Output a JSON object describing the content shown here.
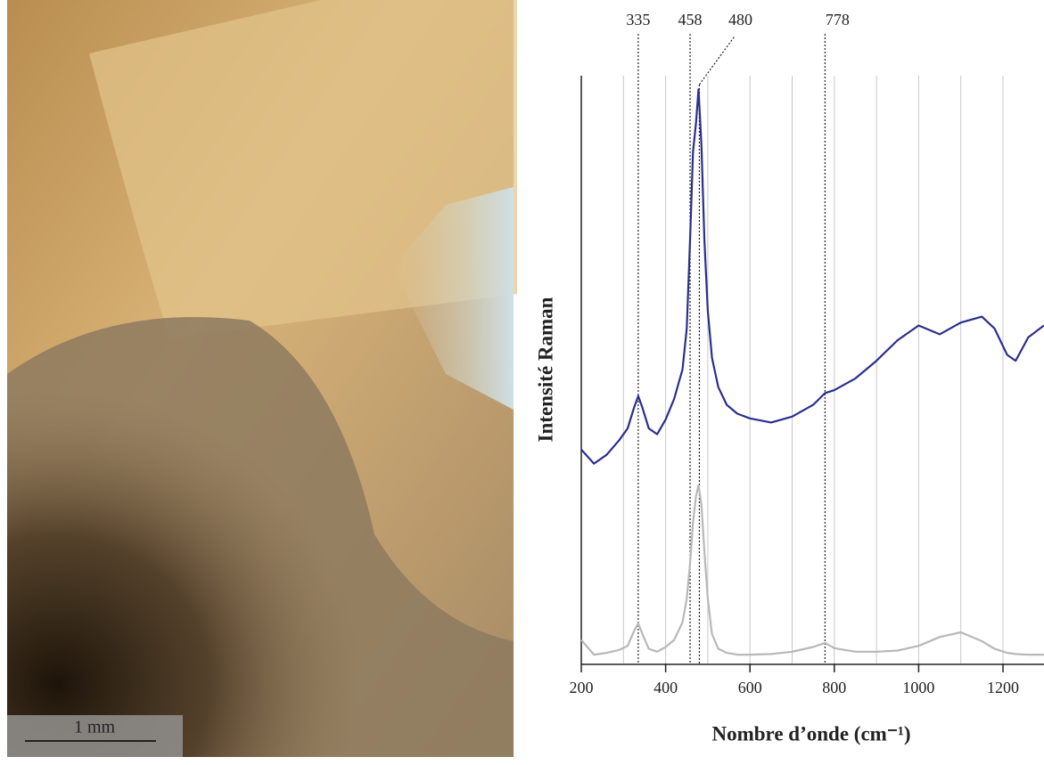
{
  "photo": {
    "scale_label": "1 mm"
  },
  "chart_data": {
    "type": "line",
    "x_label": "Nombre d’onde (cm⁻¹)",
    "y_label": "Intensité Raman",
    "x": [
      200,
      230,
      260,
      290,
      310,
      325,
      335,
      345,
      360,
      380,
      400,
      420,
      440,
      450,
      458,
      465,
      472,
      478,
      485,
      492,
      500,
      510,
      525,
      545,
      570,
      600,
      650,
      700,
      750,
      778,
      800,
      850,
      900,
      950,
      1000,
      1050,
      1100,
      1150,
      1180,
      1210,
      1230,
      1260,
      1297
    ],
    "series": [
      {
        "color": "#2b2f8c",
        "values": [
          36.4,
          34,
          35.5,
          38,
          40,
          43.5,
          45.5,
          43.5,
          40,
          39,
          41.5,
          45,
          50,
          57,
          72,
          87,
          92,
          97.7,
          88,
          72,
          60,
          52,
          47,
          44,
          42.5,
          41.7,
          41,
          42,
          44,
          46,
          46.5,
          48.5,
          51.5,
          55,
          57.5,
          56,
          58,
          59,
          57,
          52.5,
          51.5,
          55.5,
          57.5
        ]
      },
      {
        "color": "#b8b8b8",
        "values": [
          4,
          1.5,
          1.8,
          2.3,
          3,
          5.5,
          6.8,
          5,
          2.5,
          2,
          2.8,
          4,
          7,
          11,
          17,
          24,
          28.5,
          30.3,
          27,
          19,
          11,
          5,
          2.5,
          1.8,
          1.5,
          1.5,
          1.6,
          2,
          2.8,
          3.5,
          2.6,
          2,
          2,
          2.2,
          3,
          4.5,
          5.3,
          3.8,
          2.5,
          1.8,
          1.6,
          1.5,
          1.5
        ]
      }
    ],
    "xlim": [
      200,
      1297
    ],
    "ylim": [
      0,
      100
    ],
    "xticks": [
      200,
      400,
      600,
      800,
      1000,
      1200
    ],
    "xgrid": [
      300,
      400,
      500,
      600,
      700,
      800,
      900,
      1000,
      1100,
      1200
    ],
    "peak_markers": [
      335,
      458,
      480,
      778
    ]
  }
}
